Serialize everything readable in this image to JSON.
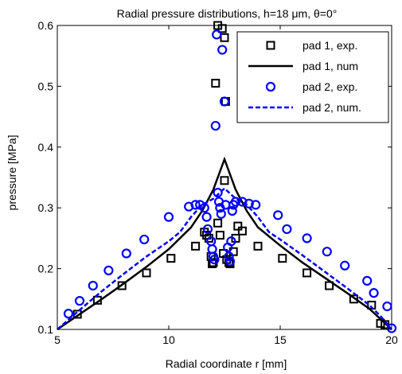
{
  "chart_data": {
    "type": "scatter",
    "title": "Radial pressure distributions, h=18 μm, θ=0°",
    "xlabel": "Radial coordinate r [mm]",
    "ylabel": "pressure [MPa]",
    "xlim": [
      5,
      20
    ],
    "ylim": [
      0.1,
      0.6
    ],
    "xticks": [
      "5",
      "10",
      "15",
      "20"
    ],
    "yticks": [
      "0.1",
      "0.2",
      "0.3",
      "0.4",
      "0.5",
      "0.6"
    ],
    "grid": false,
    "legend_position": "top-right",
    "series": [
      {
        "name": "pad 1, exp.",
        "kind": "marker-square",
        "color": "#000000",
        "points": [
          [
            5.9,
            0.125
          ],
          [
            6.8,
            0.148
          ],
          [
            7.9,
            0.172
          ],
          [
            9.0,
            0.193
          ],
          [
            10.1,
            0.217
          ],
          [
            11.2,
            0.237
          ],
          [
            11.6,
            0.26
          ],
          [
            11.7,
            0.255
          ],
          [
            11.8,
            0.25
          ],
          [
            11.9,
            0.22
          ],
          [
            11.95,
            0.208
          ],
          [
            12.0,
            0.21
          ],
          [
            12.2,
            0.275
          ],
          [
            12.1,
            0.505
          ],
          [
            12.2,
            0.6
          ],
          [
            12.4,
            0.595
          ],
          [
            12.5,
            0.58
          ],
          [
            12.55,
            0.475
          ],
          [
            12.5,
            0.345
          ],
          [
            12.3,
            0.255
          ],
          [
            12.45,
            0.225
          ],
          [
            12.6,
            0.215
          ],
          [
            12.7,
            0.21
          ],
          [
            12.75,
            0.208
          ],
          [
            12.9,
            0.228
          ],
          [
            13.0,
            0.25
          ],
          [
            13.1,
            0.27
          ],
          [
            13.3,
            0.262
          ],
          [
            14.0,
            0.237
          ],
          [
            15.1,
            0.217
          ],
          [
            16.2,
            0.193
          ],
          [
            17.2,
            0.172
          ],
          [
            18.3,
            0.15
          ],
          [
            19.1,
            0.14
          ],
          [
            19.5,
            0.11
          ],
          [
            19.7,
            0.108
          ]
        ]
      },
      {
        "name": "pad 1, num",
        "kind": "line-solid",
        "color": "#000000",
        "points": [
          [
            5.0,
            0.1
          ],
          [
            6.0,
            0.125
          ],
          [
            7.0,
            0.15
          ],
          [
            8.0,
            0.176
          ],
          [
            9.0,
            0.203
          ],
          [
            10.0,
            0.232
          ],
          [
            11.0,
            0.268
          ],
          [
            11.5,
            0.295
          ],
          [
            12.0,
            0.33
          ],
          [
            12.5,
            0.38
          ],
          [
            13.0,
            0.33
          ],
          [
            13.5,
            0.295
          ],
          [
            14.0,
            0.268
          ],
          [
            15.0,
            0.238
          ],
          [
            16.0,
            0.21
          ],
          [
            17.0,
            0.185
          ],
          [
            18.0,
            0.16
          ],
          [
            19.0,
            0.134
          ],
          [
            19.5,
            0.117
          ],
          [
            20.0,
            0.1
          ]
        ]
      },
      {
        "name": "pad 2, exp.",
        "kind": "marker-circle",
        "color": "#0000ff",
        "points": [
          [
            5.5,
            0.126
          ],
          [
            6.0,
            0.147
          ],
          [
            6.6,
            0.172
          ],
          [
            7.3,
            0.197
          ],
          [
            8.1,
            0.225
          ],
          [
            8.9,
            0.248
          ],
          [
            10.0,
            0.285
          ],
          [
            10.9,
            0.302
          ],
          [
            11.2,
            0.305
          ],
          [
            11.4,
            0.305
          ],
          [
            11.6,
            0.3
          ],
          [
            11.7,
            0.285
          ],
          [
            11.75,
            0.265
          ],
          [
            11.9,
            0.245
          ],
          [
            11.95,
            0.232
          ],
          [
            12.0,
            0.22
          ],
          [
            12.05,
            0.215
          ],
          [
            12.1,
            0.435
          ],
          [
            12.15,
            0.585
          ],
          [
            12.2,
            0.325
          ],
          [
            12.25,
            0.31
          ],
          [
            12.3,
            0.3
          ],
          [
            12.35,
            0.29
          ],
          [
            12.4,
            0.56
          ],
          [
            12.5,
            0.475
          ],
          [
            12.55,
            0.305
          ],
          [
            12.65,
            0.235
          ],
          [
            12.7,
            0.22
          ],
          [
            12.75,
            0.212
          ],
          [
            12.8,
            0.245
          ],
          [
            12.85,
            0.295
          ],
          [
            12.9,
            0.305
          ],
          [
            13.0,
            0.31
          ],
          [
            13.3,
            0.31
          ],
          [
            13.6,
            0.307
          ],
          [
            13.9,
            0.305
          ],
          [
            14.9,
            0.288
          ],
          [
            15.3,
            0.265
          ],
          [
            16.2,
            0.25
          ],
          [
            17.1,
            0.228
          ],
          [
            17.9,
            0.205
          ],
          [
            18.9,
            0.18
          ],
          [
            19.2,
            0.16
          ],
          [
            19.8,
            0.138
          ],
          [
            20.0,
            0.102
          ]
        ]
      },
      {
        "name": "pad 2, num.",
        "kind": "line-dashed",
        "color": "#0000ff",
        "points": [
          [
            5.0,
            0.1
          ],
          [
            6.0,
            0.132
          ],
          [
            7.0,
            0.163
          ],
          [
            8.0,
            0.192
          ],
          [
            9.0,
            0.22
          ],
          [
            10.0,
            0.245
          ],
          [
            10.5,
            0.26
          ],
          [
            11.0,
            0.285
          ],
          [
            11.5,
            0.305
          ],
          [
            12.0,
            0.315
          ],
          [
            12.5,
            0.332
          ],
          [
            13.0,
            0.315
          ],
          [
            13.5,
            0.305
          ],
          [
            14.0,
            0.285
          ],
          [
            14.5,
            0.26
          ],
          [
            15.0,
            0.248
          ],
          [
            16.0,
            0.222
          ],
          [
            17.0,
            0.195
          ],
          [
            18.0,
            0.168
          ],
          [
            19.0,
            0.14
          ],
          [
            19.5,
            0.122
          ],
          [
            20.0,
            0.1
          ]
        ]
      }
    ]
  }
}
